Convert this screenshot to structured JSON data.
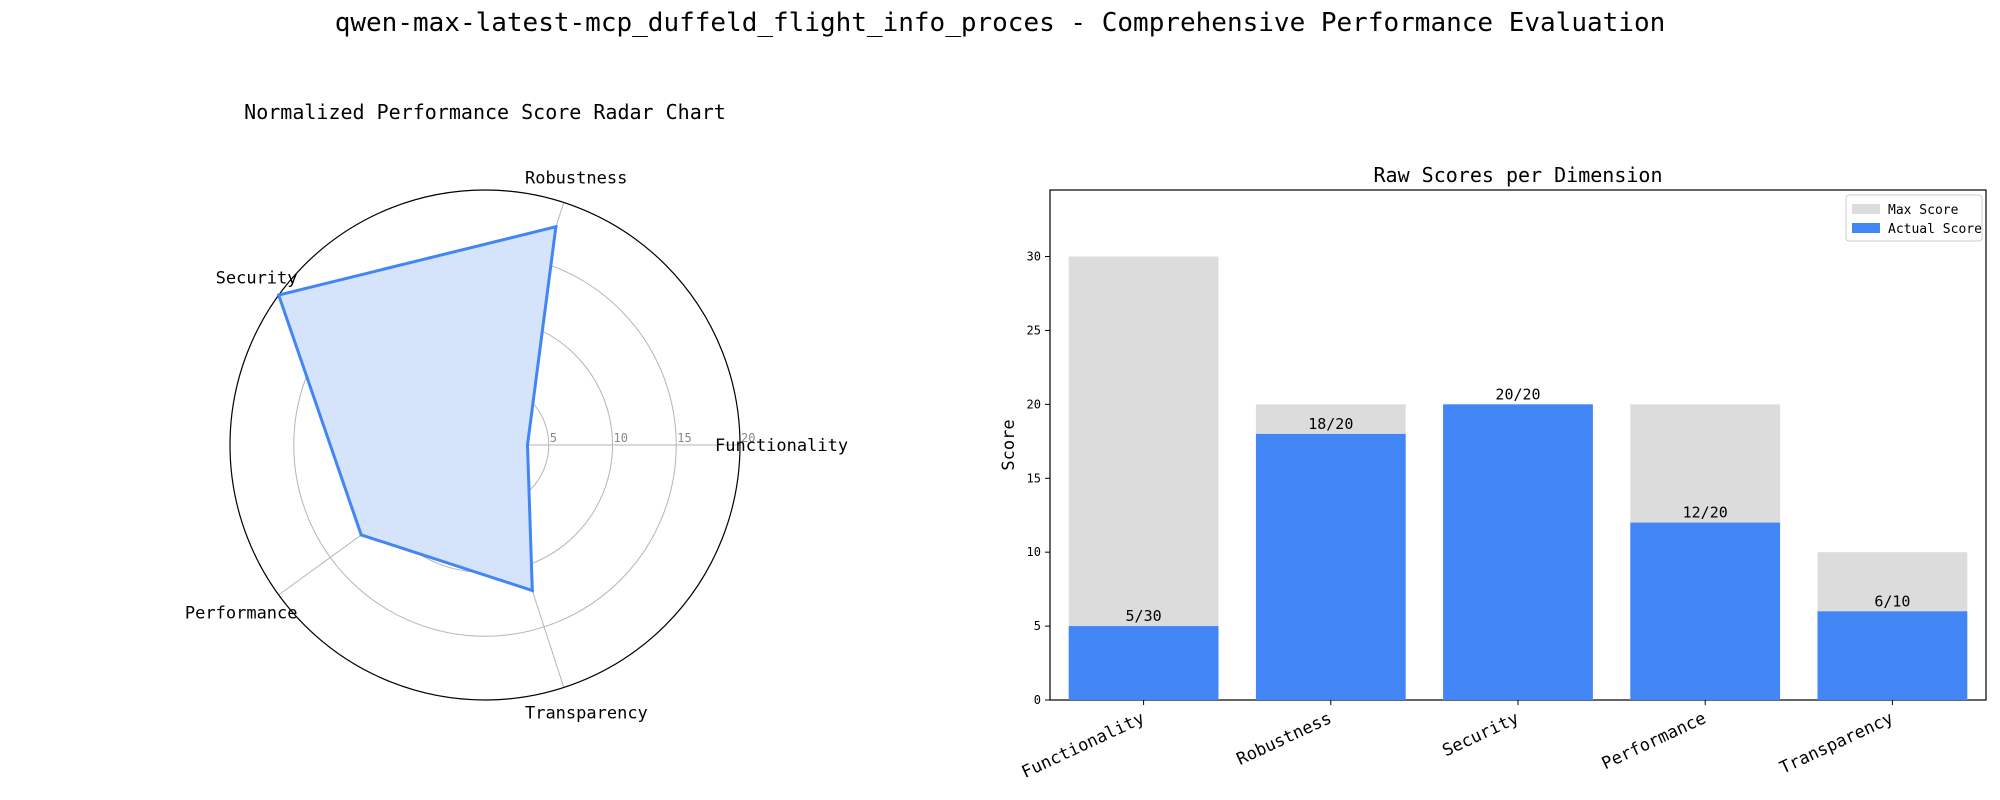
{
  "title": "qwen-max-latest-mcp_duffeld_flight_info_proces - Comprehensive Performance Evaluation",
  "colors": {
    "accent": "#4285f4",
    "radar_fill": "#d6e4fb",
    "max_bar": "#dcdcdc",
    "grid": "#b5b5b5"
  },
  "chart_data": [
    {
      "type": "radar",
      "title": "Normalized Performance Score Radar Chart",
      "axes": [
        "Functionality",
        "Robustness",
        "Security",
        "Performance",
        "Transparency"
      ],
      "values": [
        3.33,
        18,
        20,
        12,
        12
      ],
      "rlim": [
        0,
        20
      ],
      "rticks": [
        "5",
        "10",
        "15",
        "20"
      ],
      "grid": true
    },
    {
      "type": "bar",
      "title": "Raw Scores per Dimension",
      "categories": [
        "Functionality",
        "Robustness",
        "Security",
        "Performance",
        "Transparency"
      ],
      "series": [
        {
          "name": "Max Score",
          "values": [
            30,
            20,
            20,
            20,
            10
          ]
        },
        {
          "name": "Actual Score",
          "values": [
            5,
            18,
            20,
            12,
            6
          ]
        }
      ],
      "data_labels": [
        "5/30",
        "18/20",
        "20/20",
        "12/20",
        "6/10"
      ],
      "ylabel": "Score",
      "ylim": [
        0,
        34.5
      ],
      "yticks": [
        "0",
        "5",
        "10",
        "15",
        "20",
        "25",
        "30"
      ],
      "legend": "top-right"
    }
  ]
}
